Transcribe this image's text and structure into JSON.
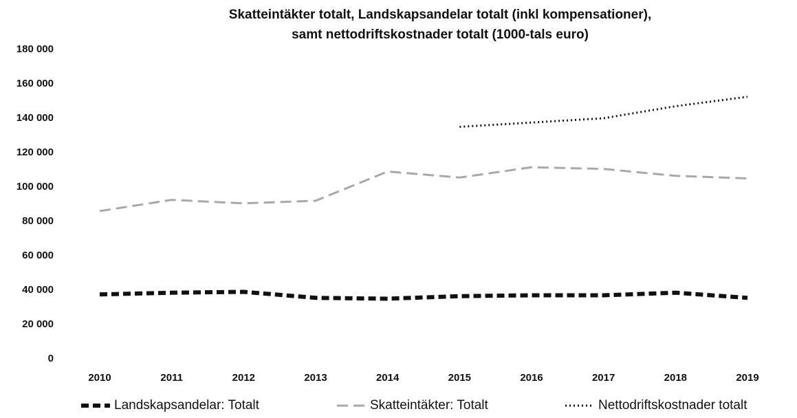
{
  "chart_data": {
    "type": "line",
    "title": [
      "Skatteintäkter totalt, Landskapsandelar totalt (inkl kompensationer),",
      "samt nettodriftskostnader totalt (1000-tals euro)"
    ],
    "categories": [
      "2010",
      "2011",
      "2012",
      "2013",
      "2014",
      "2015",
      "2016",
      "2017",
      "2018",
      "2019"
    ],
    "series": [
      {
        "name": "Landskapsandelar: Totalt",
        "color": "#111111",
        "values": [
          37500,
          38500,
          39000,
          35500,
          35000,
          36500,
          37000,
          37000,
          38500,
          35500
        ]
      },
      {
        "name": "Skatteintäkter: Totalt",
        "color": "#a8a8a8",
        "values": [
          86000,
          92500,
          90500,
          92000,
          109000,
          105500,
          111500,
          110500,
          106500,
          105000
        ]
      },
      {
        "name": "Nettodriftskostnader totalt",
        "color": "#111111",
        "values": [
          null,
          null,
          null,
          null,
          null,
          135000,
          137500,
          140000,
          147000,
          152500
        ]
      }
    ],
    "ylim": [
      0,
      180000
    ],
    "yticks": [
      0,
      {
        "value": 20000,
        "label": "20 000"
      },
      {
        "value": 40000,
        "label": "40 000"
      },
      {
        "value": 60000,
        "label": "60 000"
      },
      {
        "value": 80000,
        "label": "80 000"
      },
      {
        "value": 100000,
        "label": "100 000"
      },
      {
        "value": 120000,
        "label": "120 000"
      },
      {
        "value": 140000,
        "label": "140 000"
      },
      {
        "value": 160000,
        "label": "160 000"
      },
      {
        "value": 180000,
        "label": "180 000"
      }
    ],
    "grid": false,
    "legend": "bottom"
  }
}
